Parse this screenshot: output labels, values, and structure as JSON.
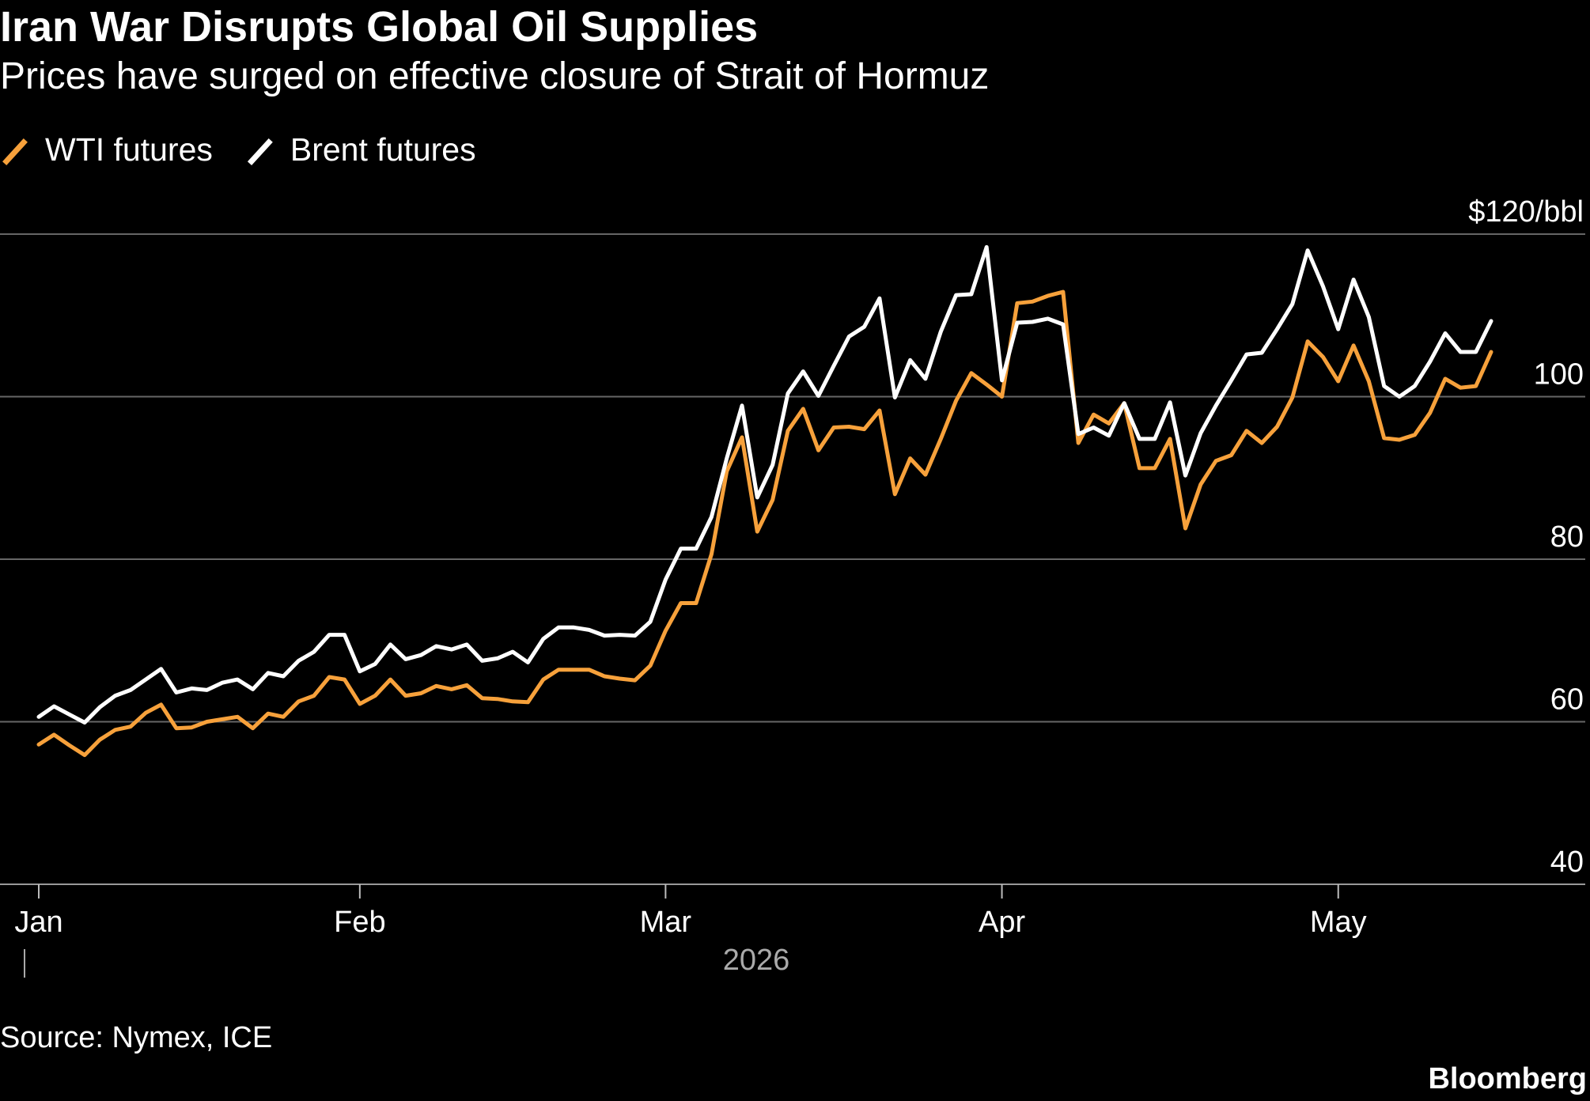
{
  "chart_data": {
    "type": "line",
    "title": "Iran War Disrupts Global Oil Supplies",
    "subtitle": "Prices have surged on effective closure of Strait of Hormuz",
    "year_label": "2026",
    "source": "Source: Nymex, ICE",
    "credit": "Bloomberg",
    "categories": [
      "Jan",
      null,
      null,
      null,
      null,
      null,
      null,
      null,
      null,
      null,
      null,
      null,
      null,
      null,
      null,
      null,
      null,
      null,
      null,
      null,
      null,
      "Feb",
      null,
      null,
      null,
      null,
      null,
      null,
      null,
      null,
      null,
      null,
      null,
      null,
      null,
      null,
      null,
      null,
      null,
      null,
      null,
      "Mar",
      null,
      null,
      null,
      null,
      null,
      null,
      null,
      null,
      null,
      null,
      null,
      null,
      null,
      null,
      null,
      null,
      null,
      null,
      null,
      null,
      null,
      "Apr",
      null,
      null,
      null,
      null,
      null,
      null,
      null,
      null,
      null,
      null,
      null,
      null,
      null,
      null,
      null,
      null,
      null,
      null,
      null,
      null,
      null,
      "May",
      null,
      null,
      null,
      null,
      null,
      null,
      null,
      null,
      null,
      null
    ],
    "series": [
      {
        "name": "WTI futures",
        "color": "#f7a13b",
        "values": [
          57.2,
          58.4,
          57.1,
          55.9,
          57.8,
          59.0,
          59.4,
          61.1,
          62.1,
          59.2,
          59.3,
          60.0,
          60.3,
          60.6,
          59.2,
          61.0,
          60.6,
          62.5,
          63.2,
          65.5,
          65.2,
          62.2,
          63.2,
          65.2,
          63.2,
          63.5,
          64.4,
          64.0,
          64.5,
          62.9,
          62.8,
          62.5,
          62.4,
          65.2,
          66.4,
          66.4,
          66.4,
          65.6,
          65.3,
          65.1,
          66.9,
          71.2,
          74.6,
          74.6,
          80.6,
          90.8,
          95.0,
          83.4,
          87.3,
          95.8,
          98.5,
          93.4,
          96.2,
          96.3,
          96.0,
          98.3,
          88.0,
          92.4,
          90.4,
          94.8,
          99.5,
          102.9,
          101.5,
          100.0,
          111.5,
          111.7,
          112.4,
          112.9,
          94.3,
          97.8,
          96.7,
          99.2,
          91.2,
          91.2,
          94.8,
          83.8,
          89.2,
          92.1,
          92.8,
          95.8,
          94.3,
          96.3,
          99.9,
          106.8,
          104.9,
          101.9,
          106.3,
          101.9,
          94.9,
          94.7,
          95.3,
          98.0,
          102.2,
          101.1,
          101.3,
          105.5
        ]
      },
      {
        "name": "Brent futures",
        "color": "#ffffff",
        "values": [
          60.6,
          61.9,
          60.9,
          59.9,
          61.8,
          63.2,
          63.9,
          65.2,
          66.5,
          63.6,
          64.1,
          63.9,
          64.8,
          65.2,
          64.0,
          66.0,
          65.6,
          67.5,
          68.6,
          70.7,
          70.7,
          66.2,
          67.1,
          69.5,
          67.7,
          68.2,
          69.3,
          68.9,
          69.5,
          67.5,
          67.8,
          68.6,
          67.3,
          70.2,
          71.6,
          71.6,
          71.3,
          70.6,
          70.7,
          70.6,
          72.3,
          77.5,
          81.3,
          81.3,
          85.2,
          92.4,
          98.9,
          87.6,
          91.6,
          100.4,
          103.1,
          100.1,
          103.8,
          107.4,
          108.6,
          112.1,
          99.9,
          104.5,
          102.2,
          108.0,
          112.5,
          112.6,
          118.4,
          102.0,
          109.1,
          109.2,
          109.6,
          108.9,
          95.4,
          96.2,
          95.2,
          99.2,
          94.8,
          94.8,
          99.3,
          90.3,
          95.5,
          98.9,
          102.0,
          105.2,
          105.4,
          108.3,
          111.4,
          118.0,
          113.6,
          108.3,
          114.4,
          109.8,
          101.3,
          100.0,
          101.3,
          104.3,
          107.8,
          105.5,
          105.5,
          109.3
        ]
      }
    ],
    "ylim": [
      40,
      120
    ],
    "yticks": [
      40,
      60,
      80,
      100,
      {
        "value": 120,
        "label": "$120/bbl"
      }
    ],
    "grid": true,
    "legend": "top-left"
  }
}
